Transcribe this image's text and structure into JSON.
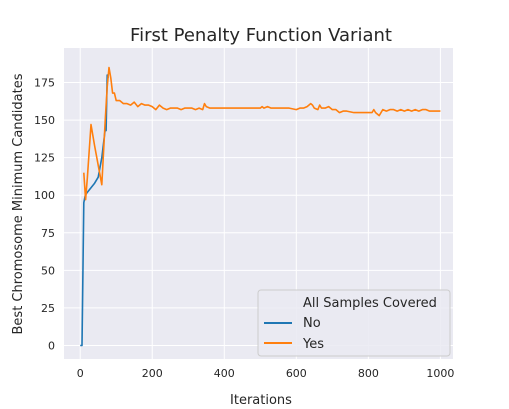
{
  "chart_data": {
    "type": "line",
    "title": "First Penalty Function Variant",
    "xlabel": "Iterations",
    "ylabel": "Best Chromosome Minimum Candidates",
    "xlim": [
      -45,
      1035
    ],
    "ylim": [
      -9,
      198
    ],
    "xticks": [
      0,
      200,
      400,
      600,
      800,
      1000
    ],
    "yticks": [
      0,
      25,
      50,
      75,
      100,
      125,
      150,
      175
    ],
    "grid": true,
    "legend": {
      "title": "All Samples Covered",
      "placement": "lower-right",
      "entries": [
        "No",
        "Yes"
      ]
    },
    "series": [
      {
        "name": "No",
        "color": "#1f77b4",
        "x": [
          0,
          5,
          10,
          14,
          20,
          30,
          40,
          50,
          60,
          70,
          72,
          75,
          78
        ],
        "y": [
          0,
          0,
          95,
          100,
          102,
          105,
          108,
          112,
          125,
          145,
          143,
          180,
          178
        ]
      },
      {
        "name": "Yes",
        "color": "#ff7f0e",
        "x": [
          10,
          15,
          20,
          30,
          35,
          40,
          50,
          60,
          70,
          75,
          80,
          85,
          90,
          95,
          100,
          110,
          120,
          130,
          140,
          150,
          160,
          170,
          180,
          190,
          200,
          210,
          220,
          230,
          240,
          250,
          260,
          270,
          280,
          290,
          300,
          310,
          320,
          330,
          340,
          345,
          350,
          360,
          370,
          380,
          400,
          420,
          440,
          460,
          480,
          500,
          505,
          510,
          520,
          530,
          540,
          560,
          580,
          600,
          610,
          620,
          630,
          635,
          640,
          645,
          650,
          660,
          665,
          670,
          680,
          690,
          700,
          710,
          720,
          730,
          740,
          760,
          780,
          800,
          810,
          815,
          820,
          830,
          840,
          850,
          860,
          870,
          880,
          890,
          900,
          910,
          920,
          930,
          940,
          950,
          960,
          970,
          980,
          990,
          1000
        ],
        "y": [
          115,
          97,
          112,
          147,
          140,
          133,
          120,
          107,
          152,
          172,
          185,
          178,
          168,
          168,
          163,
          163,
          161,
          161,
          160,
          162,
          159,
          161,
          160,
          160,
          159,
          157,
          160,
          158,
          157,
          158,
          158,
          158,
          157,
          158,
          158,
          158,
          157,
          158,
          157,
          161,
          159,
          158,
          158,
          158,
          158,
          158,
          158,
          158,
          158,
          158,
          159,
          158,
          159,
          158,
          158,
          158,
          158,
          157,
          158,
          158,
          159,
          160,
          161,
          160,
          158,
          157,
          160,
          158,
          158,
          159,
          157,
          157,
          155,
          156,
          156,
          155,
          155,
          155,
          155,
          157,
          155,
          153,
          157,
          156,
          157,
          157,
          156,
          157,
          156,
          157,
          156,
          157,
          156,
          157,
          157,
          156,
          156,
          156,
          156
        ]
      }
    ]
  }
}
